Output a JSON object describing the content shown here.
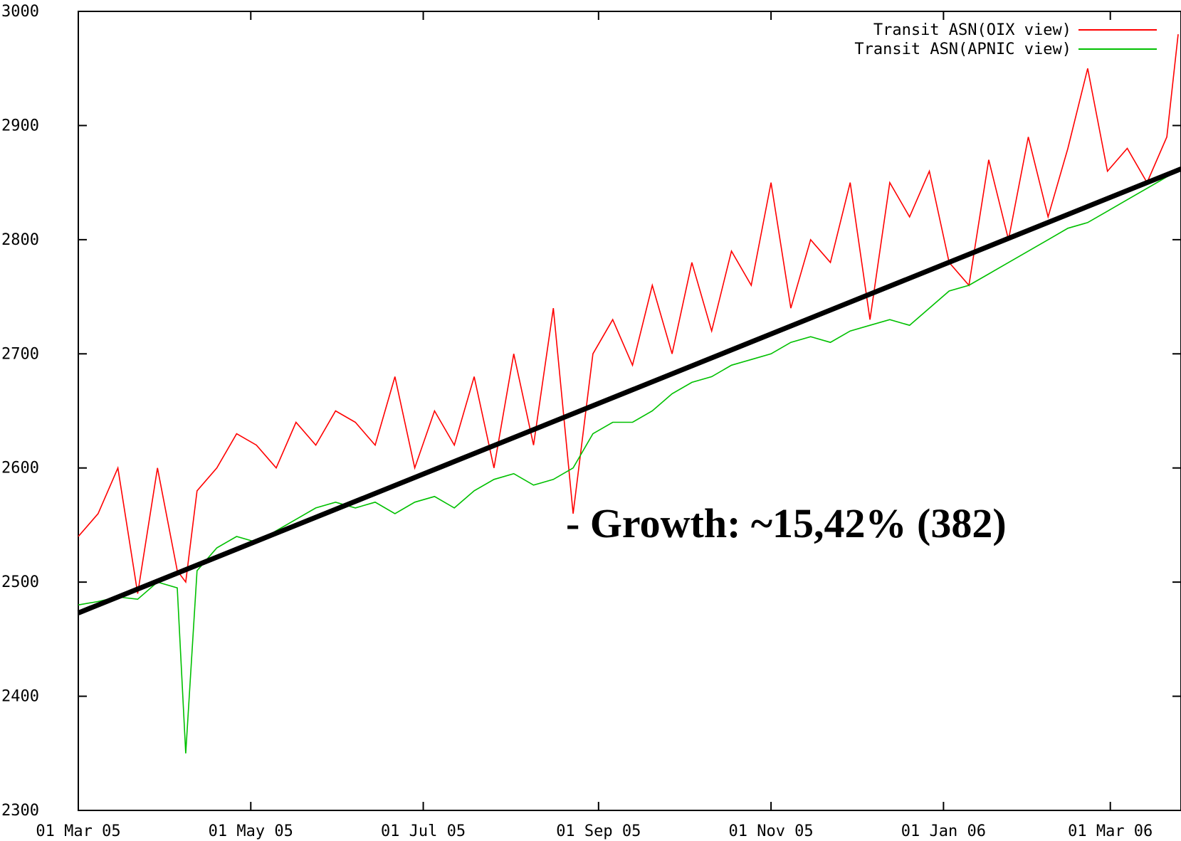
{
  "chart_data": {
    "type": "line",
    "annotation": "- Growth: ~15,42% (382)",
    "x": [
      "2005-03-01",
      "2005-03-08",
      "2005-03-15",
      "2005-03-22",
      "2005-03-29",
      "2005-04-05",
      "2005-04-08",
      "2005-04-12",
      "2005-04-19",
      "2005-04-26",
      "2005-05-03",
      "2005-05-10",
      "2005-05-17",
      "2005-05-24",
      "2005-05-31",
      "2005-06-07",
      "2005-06-14",
      "2005-06-21",
      "2005-06-28",
      "2005-07-05",
      "2005-07-12",
      "2005-07-19",
      "2005-07-26",
      "2005-08-02",
      "2005-08-09",
      "2005-08-16",
      "2005-08-23",
      "2005-08-30",
      "2005-09-06",
      "2005-09-13",
      "2005-09-20",
      "2005-09-27",
      "2005-10-04",
      "2005-10-11",
      "2005-10-18",
      "2005-10-25",
      "2005-11-01",
      "2005-11-08",
      "2005-11-15",
      "2005-11-22",
      "2005-11-29",
      "2005-12-06",
      "2005-12-13",
      "2005-12-20",
      "2005-12-27",
      "2006-01-03",
      "2006-01-10",
      "2006-01-17",
      "2006-01-24",
      "2006-01-31",
      "2006-02-07",
      "2006-02-14",
      "2006-02-21",
      "2006-02-28",
      "2006-03-07",
      "2006-03-14",
      "2006-03-21",
      "2006-03-25"
    ],
    "series": [
      {
        "name": "Transit ASN(OIX view)",
        "color": "#ff0000",
        "values": [
          2540,
          2560,
          2600,
          2490,
          2600,
          2510,
          2500,
          2580,
          2600,
          2630,
          2620,
          2600,
          2640,
          2620,
          2650,
          2640,
          2620,
          2680,
          2600,
          2650,
          2620,
          2680,
          2600,
          2700,
          2620,
          2740,
          2560,
          2700,
          2730,
          2690,
          2760,
          2700,
          2780,
          2720,
          2790,
          2760,
          2850,
          2740,
          2800,
          2780,
          2850,
          2730,
          2850,
          2820,
          2860,
          2780,
          2760,
          2870,
          2800,
          2890,
          2820,
          2880,
          2950,
          2860,
          2880,
          2850,
          2890,
          2980
        ]
      },
      {
        "name": "Transit ASN(APNIC view)",
        "color": "#00c000",
        "values": [
          2480,
          2483,
          2487,
          2485,
          2500,
          2495,
          2350,
          2510,
          2530,
          2540,
          2535,
          2545,
          2555,
          2565,
          2570,
          2565,
          2570,
          2560,
          2570,
          2575,
          2565,
          2580,
          2590,
          2595,
          2585,
          2590,
          2600,
          2630,
          2640,
          2640,
          2650,
          2665,
          2675,
          2680,
          2690,
          2695,
          2700,
          2710,
          2715,
          2710,
          2720,
          2725,
          2730,
          2725,
          2740,
          2755,
          2760,
          2770,
          2780,
          2790,
          2800,
          2810,
          2815,
          2825,
          2835,
          2845,
          2855,
          2860
        ]
      }
    ],
    "trend": {
      "x": [
        "2005-03-01",
        "2006-03-26"
      ],
      "values": [
        2473,
        2862
      ],
      "color": "#000000"
    },
    "xlim": [
      "2005-03-01",
      "2006-03-26"
    ],
    "xticks": [
      {
        "value": "2005-03-01",
        "label": "01 Mar 05"
      },
      {
        "value": "2005-05-01",
        "label": "01 May 05"
      },
      {
        "value": "2005-07-01",
        "label": "01 Jul 05"
      },
      {
        "value": "2005-09-01",
        "label": "01 Sep 05"
      },
      {
        "value": "2005-11-01",
        "label": "01 Nov 05"
      },
      {
        "value": "2006-01-01",
        "label": "01 Jan 06"
      },
      {
        "value": "2006-03-01",
        "label": "01 Mar 06"
      }
    ],
    "ylim": [
      2300,
      3000
    ],
    "yticks": [
      2300,
      2400,
      2500,
      2600,
      2700,
      2800,
      2900,
      3000
    ]
  }
}
